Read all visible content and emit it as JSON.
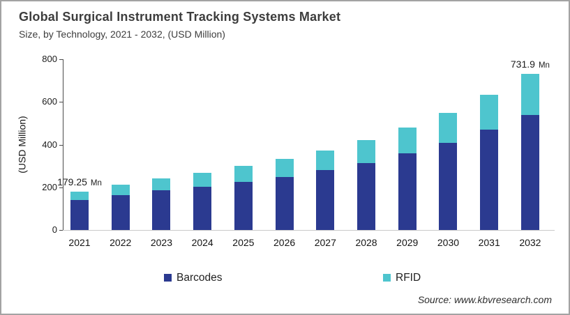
{
  "header": {
    "title": "Global Surgical Instrument Tracking Systems Market",
    "subtitle": "Size, by Technology, 2021 - 2032, (USD Million)"
  },
  "chart_data": {
    "type": "bar",
    "stacked": true,
    "categories": [
      "2021",
      "2022",
      "2023",
      "2024",
      "2025",
      "2026",
      "2027",
      "2028",
      "2029",
      "2030",
      "2031",
      "2032"
    ],
    "series": [
      {
        "name": "Barcodes",
        "color": "#2B3A90",
        "values": [
          140,
          163,
          186,
          203,
          225,
          249,
          280,
          312,
          358,
          408,
          470,
          540
        ]
      },
      {
        "name": "RFID",
        "color": "#4EC5CE",
        "values": [
          39.25,
          49,
          56,
          65,
          75,
          83,
          91,
          108,
          122,
          140,
          162,
          191.9
        ]
      }
    ],
    "totals": [
      179.25,
      212,
      242,
      268,
      300,
      332,
      371,
      420,
      480,
      548,
      632,
      731.9
    ],
    "xlabel": "",
    "ylabel": "(USD Million)",
    "ylim": [
      0,
      800
    ],
    "yticks": [
      0,
      200,
      400,
      600,
      800
    ],
    "grid": "off",
    "legend_position": "bottom",
    "annotations": [
      {
        "category": "2021",
        "value_label": "179.25",
        "unit": "Mn"
      },
      {
        "category": "2032",
        "value_label": "731.9",
        "unit": "Mn"
      }
    ]
  },
  "footer": {
    "source": "Source: www.kbvresearch.com"
  }
}
